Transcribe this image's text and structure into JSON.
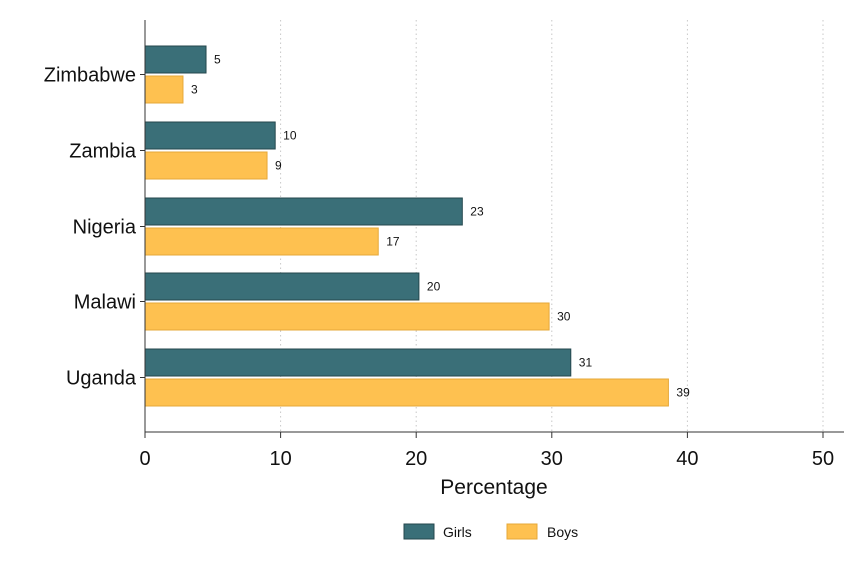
{
  "chart_data": {
    "type": "bar",
    "orientation": "horizontal",
    "categories": [
      "Zimbabwe",
      "Zambia",
      "Nigeria",
      "Malawi",
      "Uganda"
    ],
    "series": [
      {
        "name": "Girls",
        "values": [
          5,
          10,
          23,
          20,
          31
        ],
        "color": "#3a6f78"
      },
      {
        "name": "Boys",
        "values": [
          3,
          9,
          17,
          30,
          39
        ],
        "color": "#fec150"
      }
    ],
    "bar_values_precise": {
      "Girls": [
        4.5,
        9.6,
        23.4,
        20.2,
        31.4
      ],
      "Boys": [
        2.8,
        9.0,
        17.2,
        29.8,
        38.6
      ]
    },
    "title": "",
    "xlabel": "Percentage",
    "ylabel": "",
    "xlim": [
      0,
      50
    ],
    "xticks": [
      "0",
      "10",
      "20",
      "30",
      "40",
      "50"
    ],
    "grid": "vertical dotted",
    "legend_position": "bottom",
    "bar_outline_colors": {
      "Girls": "#24474d",
      "Boys": "#e6a838"
    }
  }
}
